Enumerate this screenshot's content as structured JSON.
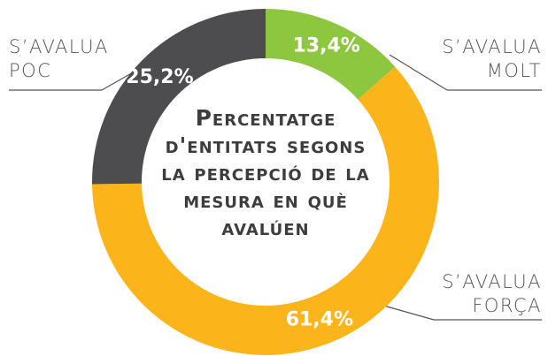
{
  "chart_data": {
    "type": "donut",
    "title": "Percentatge d'entitats segons la percepció de la mesura en què avalúen",
    "categories": [
      "S’AVALUA MOLT",
      "S’AVALUA FORÇA",
      "S’AVALUA POC"
    ],
    "values": [
      13.4,
      61.4,
      25.2
    ],
    "value_labels": [
      "13,4%",
      "61,4%",
      "25,2%"
    ],
    "colors": [
      "#8dc63f",
      "#fbb51a",
      "#4d4d4f"
    ]
  }
}
